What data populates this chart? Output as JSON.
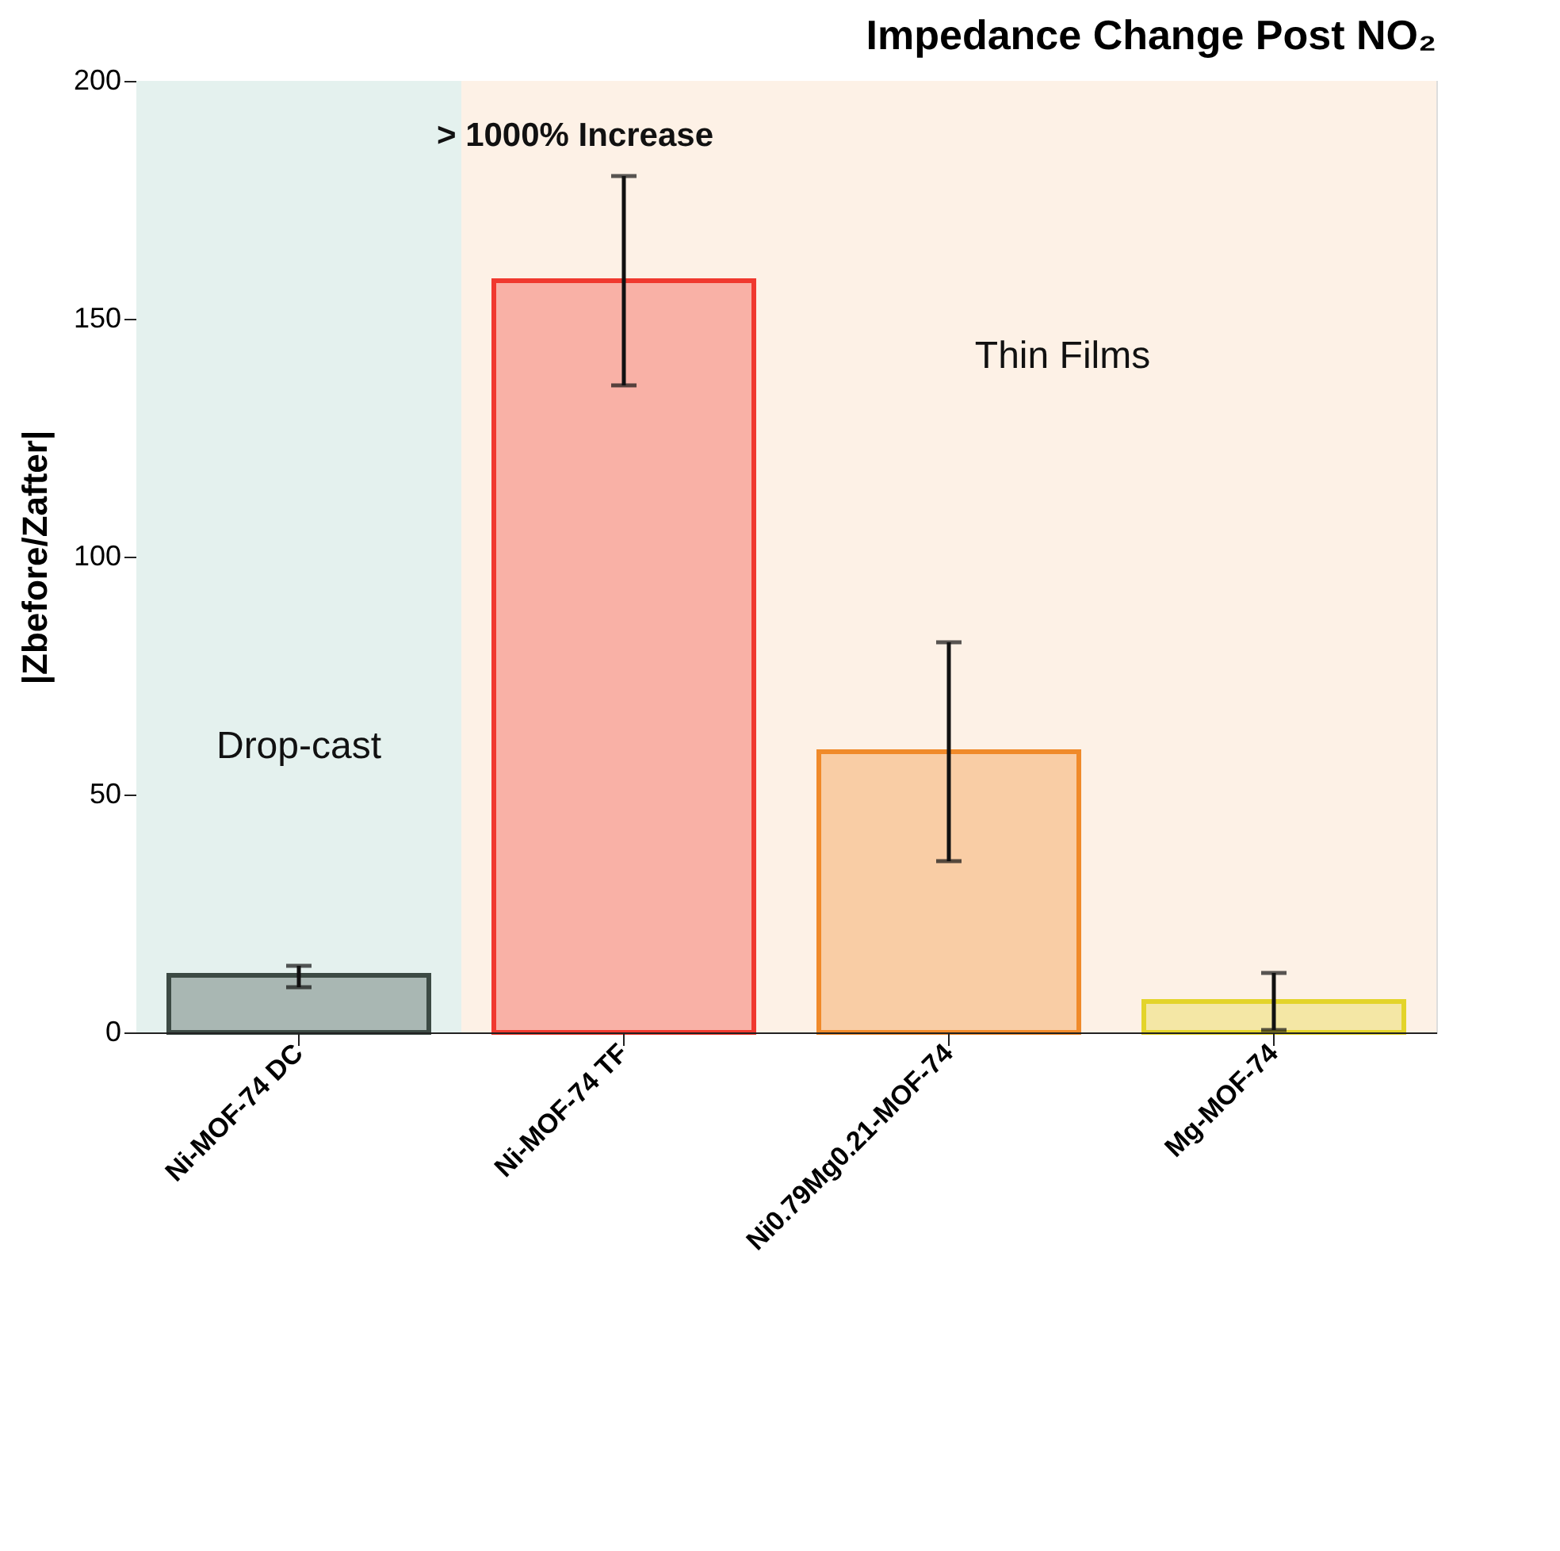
{
  "chart_data": {
    "type": "bar",
    "title": "Impedance Change Post NO₂",
    "ylabel": "|Zbefore/Zafter|",
    "categories": [
      "Ni-MOF-74 DC",
      "Ni-MOF-74 TF",
      "Ni0.79Mg0.21-MOF-74",
      "Mg-MOF-74"
    ],
    "values": [
      12,
      158,
      59,
      6.5
    ],
    "colors": [
      "#3c4a44",
      "#f0392f",
      "#f08a2a",
      "#e3d42a"
    ],
    "errors": [
      [
        9.5,
        14
      ],
      [
        136,
        180
      ],
      [
        36,
        82
      ],
      [
        0.5,
        12.5
      ]
    ],
    "ylim": [
      0,
      200
    ],
    "yticks": [
      0,
      50,
      100,
      150,
      200
    ],
    "bands": [
      {
        "axis": "x",
        "from": "Ni-MOF-74 DC",
        "to": "Ni-MOF-74 DC",
        "label": "Drop-cast",
        "color": "#e4f1ee"
      },
      {
        "axis": "x",
        "from": "Ni-MOF-74 TF",
        "to": "Mg-MOF-74",
        "label": "Thin Films",
        "color": "#fdf1e6"
      }
    ],
    "annotations": [
      "> 1000% Increase"
    ],
    "grid": false
  }
}
